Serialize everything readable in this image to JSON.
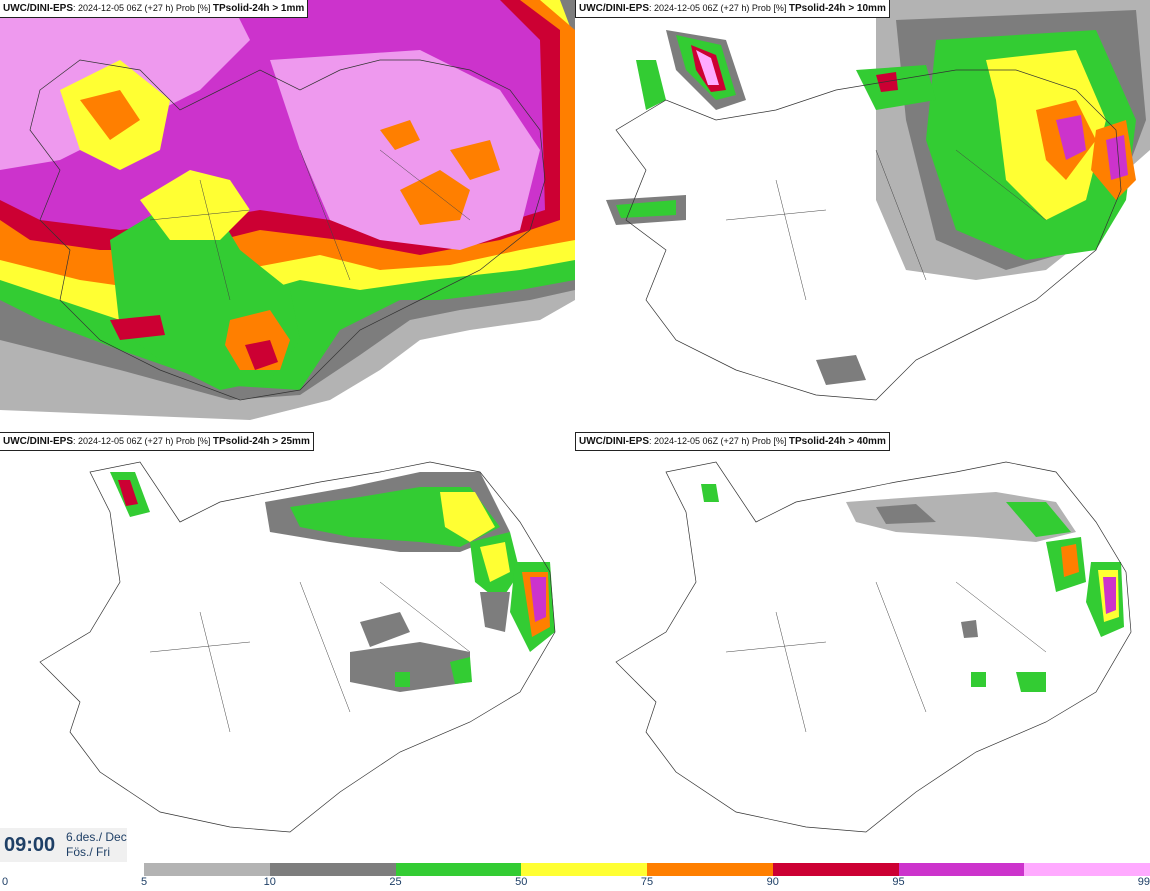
{
  "panels": [
    {
      "model": "UWC/DINI-EPS",
      "run": "2024-12-05 06Z (+27 h) Prob [%]",
      "threshold": "TPsolid-24h > 1mm"
    },
    {
      "model": "UWC/DINI-EPS",
      "run": "2024-12-05 06Z (+27 h) Prob [%]",
      "threshold": "TPsolid-24h > 10mm"
    },
    {
      "model": "UWC/DINI-EPS",
      "run": "2024-12-05 06Z (+27 h) Prob [%]",
      "threshold": "TPsolid-24h > 25mm"
    },
    {
      "model": "UWC/DINI-EPS",
      "run": "2024-12-05 06Z (+27 h) Prob [%]",
      "threshold": "TPsolid-24h > 40mm"
    }
  ],
  "time": {
    "clock": "09:00",
    "date_line1": "6.des./ Dec",
    "date_line2": "Fös./ Fri"
  },
  "colorbar": {
    "ticks": [
      "0",
      "5",
      "10",
      "25",
      "50",
      "75",
      "90",
      "95",
      "99"
    ],
    "colors": [
      "#b3b3b3",
      "#7d7d7d",
      "#33cc33",
      "#ffff33",
      "#ff7f00",
      "#cc0033",
      "#cc33cc",
      "#ffaaff"
    ]
  },
  "colors": {
    "p5": "#b3b3b3",
    "p10": "#7d7d7d",
    "p25": "#33cc33",
    "p50": "#ffff33",
    "p75": "#ff7f00",
    "p90": "#cc0033",
    "p95": "#cc33cc",
    "p99": "#ffaaff"
  }
}
